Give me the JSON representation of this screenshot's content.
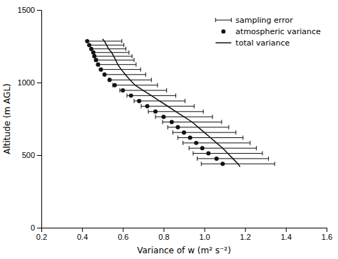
{
  "chart_data": {
    "type": "line",
    "xlabel": "Variance of w (m² s⁻²)",
    "ylabel": "Altitude (m AGL)",
    "xlim": [
      0.2,
      1.6
    ],
    "ylim": [
      0,
      1500
    ],
    "xticks": [
      0.2,
      0.4,
      0.6,
      0.8,
      {
        "value": 1.0,
        "label": "1.0"
      },
      1.2,
      1.4,
      1.6
    ],
    "yticks": [
      0,
      500,
      1000,
      1500
    ],
    "legend": "upper right",
    "grid": false,
    "series": [
      {
        "name": "sampling error",
        "type": "errorbar",
        "color": "#111111",
        "y": [
          1285,
          1258,
          1232,
          1207,
          1181,
          1155,
          1124,
          1090,
          1055,
          1018,
          982,
          946,
          910,
          873,
          837,
          800,
          764,
          728,
          692,
          656,
          620,
          584,
          548,
          512,
          476,
          440
        ],
        "x": [
          0.51,
          0.52,
          0.53,
          0.545,
          0.555,
          0.565,
          0.575,
          0.592,
          0.612,
          0.635,
          0.66,
          0.7,
          0.74,
          0.78,
          0.82,
          0.86,
          0.9,
          0.94,
          0.97,
          1.0,
          1.03,
          1.06,
          1.09,
          1.115,
          1.14,
          1.165
        ],
        "xerr_left": [
          0.085,
          0.085,
          0.085,
          0.085,
          0.09,
          0.09,
          0.09,
          0.095,
          0.1,
          0.105,
          0.11,
          0.115,
          0.12,
          0.125,
          0.13,
          0.135,
          0.14,
          0.145,
          0.15,
          0.155,
          0.16,
          0.165,
          0.165,
          0.17,
          0.175,
          0.18
        ],
        "xerr_right": [
          0.085,
          0.085,
          0.085,
          0.085,
          0.09,
          0.09,
          0.09,
          0.095,
          0.1,
          0.105,
          0.11,
          0.115,
          0.12,
          0.125,
          0.13,
          0.135,
          0.14,
          0.145,
          0.15,
          0.155,
          0.16,
          0.165,
          0.165,
          0.17,
          0.175,
          0.18
        ]
      },
      {
        "name": "atmospheric variance",
        "type": "scatter",
        "color": "#111111",
        "marker": "circle",
        "y": [
          1285,
          1258,
          1232,
          1207,
          1181,
          1155,
          1124,
          1090,
          1055,
          1018,
          982,
          946,
          910,
          873,
          837,
          800,
          764,
          728,
          692,
          656,
          620,
          584,
          548,
          512,
          476,
          440
        ],
        "x": [
          0.425,
          0.435,
          0.445,
          0.455,
          0.46,
          0.468,
          0.478,
          0.492,
          0.51,
          0.535,
          0.56,
          0.6,
          0.64,
          0.68,
          0.72,
          0.76,
          0.8,
          0.84,
          0.87,
          0.9,
          0.93,
          0.96,
          0.99,
          1.02,
          1.06,
          1.09
        ]
      },
      {
        "name": "total variance",
        "type": "line",
        "color": "#111111",
        "line_style": "solid",
        "y": [
          1300,
          1285,
          1258,
          1232,
          1207,
          1181,
          1155,
          1124,
          1090,
          1055,
          1018,
          982,
          946,
          910,
          873,
          837,
          800,
          764,
          728,
          692,
          656,
          620,
          584,
          548,
          512,
          476,
          440,
          420
        ],
        "x": [
          0.5,
          0.51,
          0.52,
          0.53,
          0.545,
          0.555,
          0.565,
          0.575,
          0.592,
          0.612,
          0.635,
          0.66,
          0.7,
          0.74,
          0.78,
          0.82,
          0.86,
          0.9,
          0.94,
          0.97,
          1.0,
          1.03,
          1.06,
          1.09,
          1.115,
          1.14,
          1.165,
          1.175
        ]
      }
    ]
  }
}
